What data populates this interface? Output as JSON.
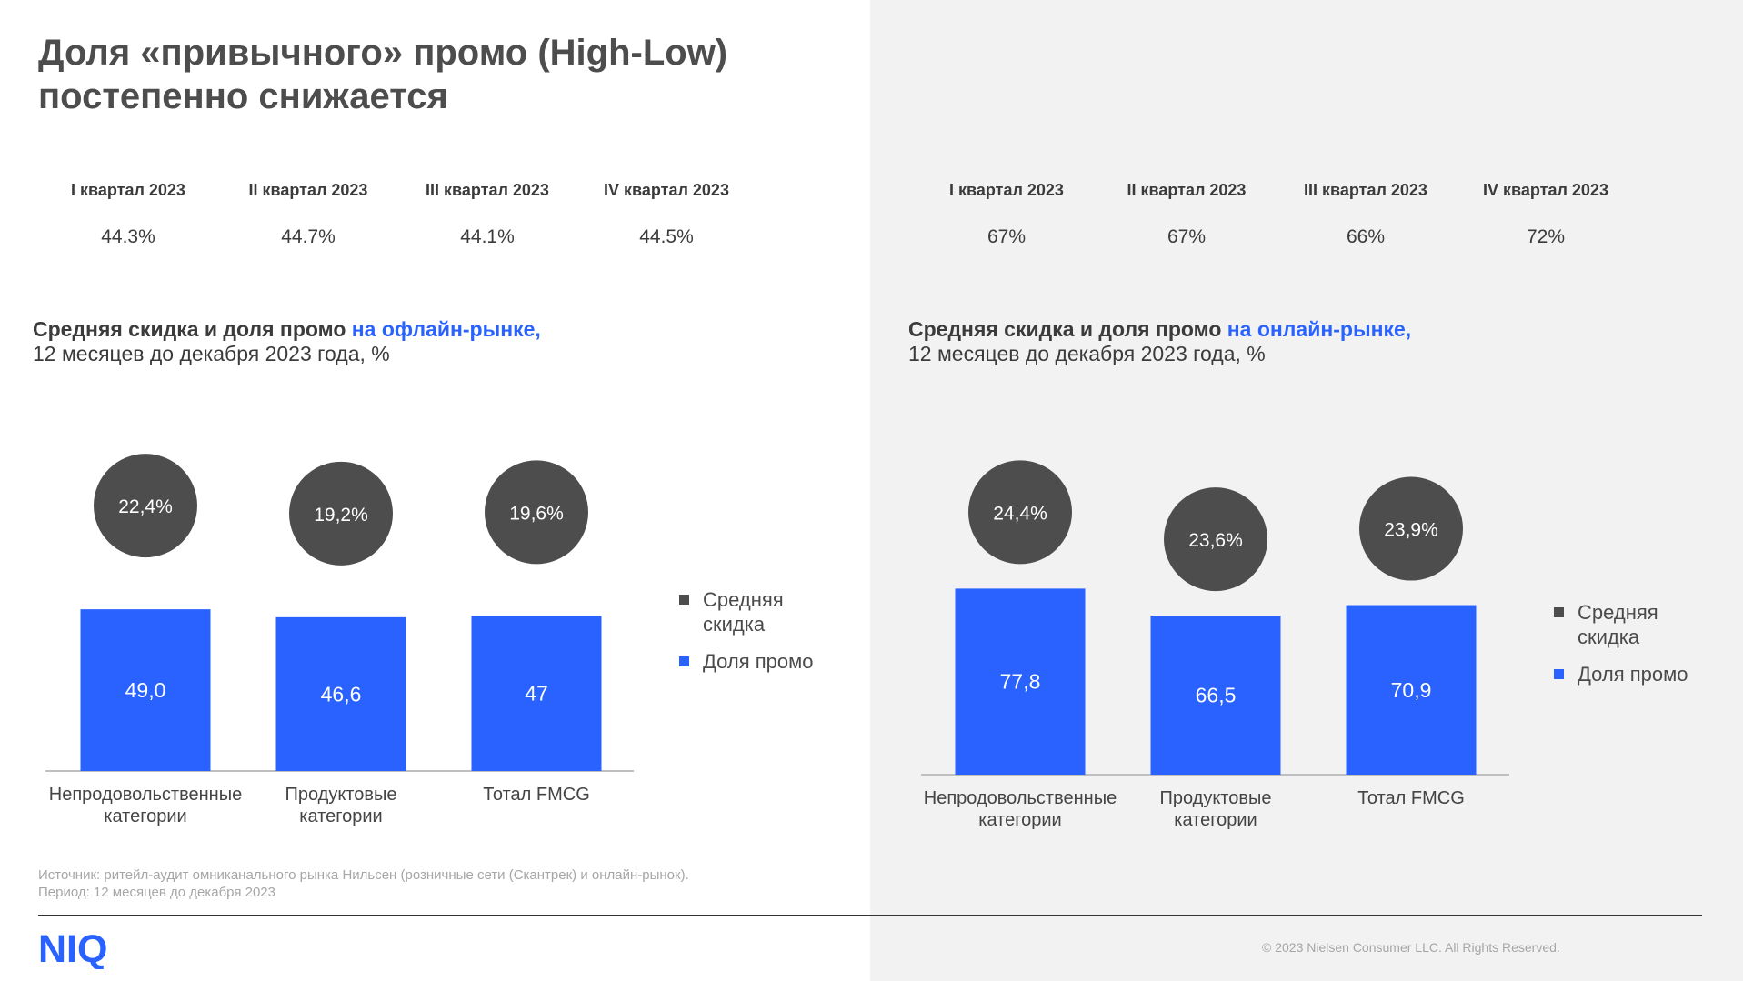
{
  "title_line1": "Доля «привычного» промо (High-Low)",
  "title_line2": "постепенно снижается",
  "left": {
    "quarters": [
      {
        "label": "I квартал 2023",
        "value": "44.3%"
      },
      {
        "label": "II квартал 2023",
        "value": "44.7%"
      },
      {
        "label": "III квартал 2023",
        "value": "44.1%"
      },
      {
        "label": "IV квартал 2023",
        "value": "44.5%"
      }
    ],
    "subtitle_bold": "Средняя скидка и доля промо ",
    "subtitle_accent": "на офлайн-рынке,",
    "subtitle_line2": "12 месяцев до декабря 2023 года, %"
  },
  "right": {
    "quarters": [
      {
        "label": "I квартал 2023",
        "value": "67%"
      },
      {
        "label": "II квартал 2023",
        "value": "67%"
      },
      {
        "label": "III квартал 2023",
        "value": "66%"
      },
      {
        "label": "IV квартал 2023",
        "value": "72%"
      }
    ],
    "subtitle_bold": "Средняя скидка и доля промо ",
    "subtitle_accent": "на онлайн-рынке,",
    "subtitle_line2": "12 месяцев до декабря 2023 года, %"
  },
  "chart_data": [
    {
      "type": "bar",
      "categories": [
        [
          "Непродовольственные",
          "категории"
        ],
        [
          "Продуктовые",
          "категории"
        ],
        [
          "Тотал FMCG"
        ]
      ],
      "series": [
        {
          "name": "Доля промо",
          "values": [
            49.0,
            46.6,
            47
          ],
          "labels": [
            "49,0",
            "46,6",
            "47"
          ]
        },
        {
          "name": "Средняя скидка",
          "values": [
            22.4,
            19.2,
            19.6
          ],
          "labels": [
            "22,4%",
            "19,2%",
            "19,6%"
          ]
        }
      ],
      "legend": [
        "Средняя скидка",
        "Доля промо"
      ],
      "legend_position": "right"
    },
    {
      "type": "bar",
      "categories": [
        [
          "Непродовольственные",
          "категории"
        ],
        [
          "Продуктовые",
          "категории"
        ],
        [
          "Тотал FMCG"
        ]
      ],
      "series": [
        {
          "name": "Доля промо",
          "values": [
            77.8,
            66.5,
            70.9
          ],
          "labels": [
            "77,8",
            "66,5",
            "70,9"
          ]
        },
        {
          "name": "Средняя скидка",
          "values": [
            24.4,
            23.6,
            23.9
          ],
          "labels": [
            "24,4%",
            "23,6%",
            "23,9%"
          ]
        }
      ],
      "legend": [
        "Средняя скидка",
        "Доля промо"
      ],
      "legend_position": "right"
    }
  ],
  "legend": {
    "discount_line1": "Средняя",
    "discount_line2": "скидка",
    "promo": "Доля промо"
  },
  "source_line1": "Источник: ритейл-аудит омниканального рынка Нильсен (розничные сети (Скантрек) и онлайн-рынок).",
  "source_line2": "Период: 12 месяцев до декабря 2023",
  "logo_text": "NIQ",
  "copyright": "© 2023 Nielsen Consumer LLC. All Rights Reserved.",
  "colors": {
    "bar": "#2962ff",
    "bubble": "#4d4d4d",
    "accent": "#2962ff",
    "axis": "#bfbfbf"
  }
}
